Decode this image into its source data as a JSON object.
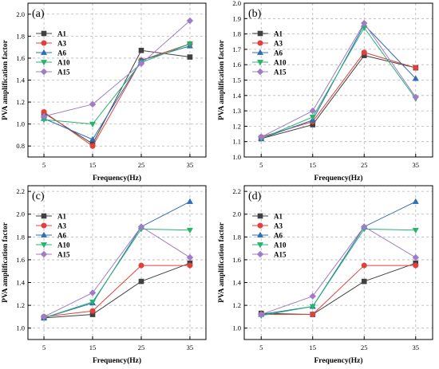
{
  "figure": {
    "marker_colors": {
      "A1": "#404040",
      "A3": "#e0413c",
      "A6": "#2f6db5",
      "A10": "#27b36d",
      "A15": "#a07cc8"
    }
  },
  "chart_data": [
    {
      "type": "line",
      "panel_label": "(a)",
      "xlabel": "Frequency(Hz)",
      "ylabel": "PVA amplification factor",
      "categories": [
        "5",
        "15",
        "25",
        "35"
      ],
      "ylim": [
        0.7,
        2.1
      ],
      "yticks": [
        "0.8",
        "1.0",
        "1.2",
        "1.4",
        "1.6",
        "1.8",
        "2.0"
      ],
      "grid": true,
      "legend_position": "top-left",
      "series": [
        {
          "name": "A1",
          "values": [
            1.1,
            0.82,
            1.67,
            1.61
          ]
        },
        {
          "name": "A3",
          "values": [
            1.11,
            0.8,
            1.58,
            1.73
          ]
        },
        {
          "name": "A6",
          "values": [
            1.05,
            0.86,
            1.58,
            1.71
          ]
        },
        {
          "name": "A10",
          "values": [
            1.04,
            1.0,
            1.56,
            1.73
          ]
        },
        {
          "name": "A15",
          "values": [
            1.07,
            1.18,
            1.55,
            1.94
          ]
        }
      ]
    },
    {
      "type": "line",
      "panel_label": "(b)",
      "xlabel": "Frequency(Hz)",
      "ylabel": "PVA amplification factor",
      "categories": [
        "5",
        "15",
        "25",
        "35"
      ],
      "ylim": [
        1.0,
        2.0
      ],
      "yticks": [
        "1.0",
        "1.1",
        "1.2",
        "1.3",
        "1.4",
        "1.5",
        "1.6",
        "1.7",
        "1.8",
        "1.9",
        "2.0"
      ],
      "grid": true,
      "legend_position": "top-left",
      "series": [
        {
          "name": "A1",
          "values": [
            1.12,
            1.21,
            1.66,
            1.58
          ]
        },
        {
          "name": "A3",
          "values": [
            1.13,
            1.23,
            1.68,
            1.58
          ]
        },
        {
          "name": "A6",
          "values": [
            1.12,
            1.24,
            1.86,
            1.51
          ]
        },
        {
          "name": "A10",
          "values": [
            1.12,
            1.26,
            1.84,
            1.38
          ]
        },
        {
          "name": "A15",
          "values": [
            1.13,
            1.3,
            1.87,
            1.39
          ]
        }
      ]
    },
    {
      "type": "line",
      "panel_label": "(c)",
      "xlabel": "Frequency(Hz)",
      "ylabel": "PVA amplification factor",
      "categories": [
        "5",
        "15",
        "25",
        "35"
      ],
      "ylim": [
        0.9,
        2.25
      ],
      "yticks": [
        "1.0",
        "1.2",
        "1.4",
        "1.6",
        "1.8",
        "2.0",
        "2.2"
      ],
      "grid": true,
      "legend_position": "top-left",
      "series": [
        {
          "name": "A1",
          "values": [
            1.09,
            1.12,
            1.41,
            1.57
          ]
        },
        {
          "name": "A3",
          "values": [
            1.1,
            1.15,
            1.55,
            1.55
          ]
        },
        {
          "name": "A6",
          "values": [
            1.09,
            1.22,
            1.89,
            2.11
          ]
        },
        {
          "name": "A10",
          "values": [
            1.09,
            1.23,
            1.87,
            1.86
          ]
        },
        {
          "name": "A15",
          "values": [
            1.1,
            1.31,
            1.89,
            1.62
          ]
        }
      ]
    },
    {
      "type": "line",
      "panel_label": "(d)",
      "xlabel": "Frequency(Hz)",
      "ylabel": "PVA amplification factor",
      "categories": [
        "5",
        "15",
        "25",
        "35"
      ],
      "ylim": [
        0.9,
        2.25
      ],
      "yticks": [
        "1.0",
        "1.2",
        "1.4",
        "1.6",
        "1.8",
        "2.0",
        "2.2"
      ],
      "grid": true,
      "legend_position": "top-left",
      "series": [
        {
          "name": "A1",
          "values": [
            1.13,
            1.12,
            1.41,
            1.57
          ]
        },
        {
          "name": "A3",
          "values": [
            1.12,
            1.12,
            1.55,
            1.55
          ]
        },
        {
          "name": "A6",
          "values": [
            1.12,
            1.19,
            1.89,
            2.11
          ]
        },
        {
          "name": "A10",
          "values": [
            1.11,
            1.19,
            1.87,
            1.86
          ]
        },
        {
          "name": "A15",
          "values": [
            1.12,
            1.28,
            1.89,
            1.62
          ]
        }
      ]
    }
  ]
}
